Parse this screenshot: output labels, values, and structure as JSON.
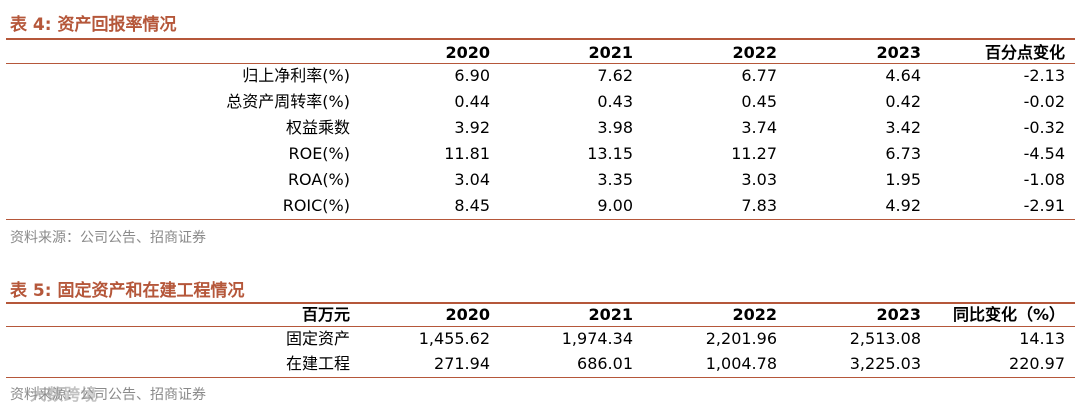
{
  "table4": {
    "title": "表 4:  资产回报率情况",
    "header": [
      "",
      "2020",
      "2021",
      "2022",
      "2023",
      "百分点变化"
    ],
    "rows": [
      [
        "归上净利率(%)",
        "6.90",
        "7.62",
        "6.77",
        "4.64",
        "-2.13"
      ],
      [
        "总资产周转率(%)",
        "0.44",
        "0.43",
        "0.45",
        "0.42",
        "-0.02"
      ],
      [
        "权益乘数",
        "3.92",
        "3.98",
        "3.74",
        "3.42",
        "-0.32"
      ],
      [
        "ROE(%)",
        "11.81",
        "13.15",
        "11.27",
        "6.73",
        "-4.54"
      ],
      [
        "ROA(%)",
        "3.04",
        "3.35",
        "3.03",
        "1.95",
        "-1.08"
      ],
      [
        "ROIC(%)",
        "8.45",
        "9.00",
        "7.83",
        "4.92",
        "-2.91"
      ]
    ],
    "source": "资料来源：公司公告、招商证券"
  },
  "table5": {
    "title": "表 5:  固定资产和在建工程情况",
    "header": [
      "百万元",
      "2020",
      "2021",
      "2022",
      "2023",
      "同比变化（%）"
    ],
    "rows": [
      [
        "固定资产",
        "1,455.62",
        "1,974.34",
        "2,201.96",
        "2,513.08",
        "14.13"
      ],
      [
        "在建工程",
        "271.94",
        "686.01",
        "1,004.78",
        "3,225.03",
        "220.97"
      ]
    ],
    "source": "资料来源：公司公告、招商证券"
  },
  "watermark": "大数跨境"
}
